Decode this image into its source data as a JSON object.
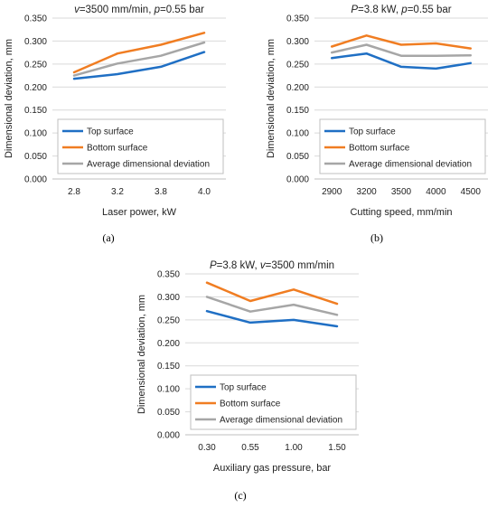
{
  "chart_data": [
    {
      "type": "line",
      "panel_label": "(a)",
      "title_parts": [
        {
          "t": "v",
          "italic": true
        },
        {
          "t": "=3500 mm/min, ",
          "italic": false
        },
        {
          "t": "p",
          "italic": true
        },
        {
          "t": "=0.55 bar",
          "italic": false
        }
      ],
      "xlabel": "Laser power, kW",
      "ylabel": "Dimensional deviation, mm",
      "categories": [
        "2.8",
        "3.2",
        "3.8",
        "4.0"
      ],
      "ylim": [
        0,
        0.35
      ],
      "yticks": [
        "0.000",
        "0.050",
        "0.100",
        "0.150",
        "0.200",
        "0.250",
        "0.300",
        "0.350"
      ],
      "grid": "horizontal",
      "legend_position": "bottom-right",
      "series": [
        {
          "name": "Top surface",
          "color": "#1f6fc4",
          "values": [
            0.218,
            0.228,
            0.244,
            0.276
          ]
        },
        {
          "name": "Bottom surface",
          "color": "#f07d22",
          "values": [
            0.232,
            0.273,
            0.292,
            0.318
          ]
        },
        {
          "name": "Average dimensional deviation",
          "color": "#a6a6a6",
          "values": [
            0.225,
            0.251,
            0.268,
            0.297
          ]
        }
      ]
    },
    {
      "type": "line",
      "panel_label": "(b)",
      "title_parts": [
        {
          "t": "P",
          "italic": true
        },
        {
          "t": "=3.8 kW, ",
          "italic": false
        },
        {
          "t": "p",
          "italic": true
        },
        {
          "t": "=0.55 bar",
          "italic": false
        }
      ],
      "xlabel": "Cutting speed, mm/min",
      "ylabel": "Dimensional deviation, mm",
      "categories": [
        "2900",
        "3200",
        "3500",
        "4000",
        "4500"
      ],
      "ylim": [
        0,
        0.35
      ],
      "yticks": [
        "0.000",
        "0.050",
        "0.100",
        "0.150",
        "0.200",
        "0.250",
        "0.300",
        "0.350"
      ],
      "grid": "horizontal",
      "legend_position": "bottom-right",
      "series": [
        {
          "name": "Top surface",
          "color": "#1f6fc4",
          "values": [
            0.263,
            0.273,
            0.244,
            0.24,
            0.252
          ]
        },
        {
          "name": "Bottom surface",
          "color": "#f07d22",
          "values": [
            0.288,
            0.312,
            0.292,
            0.295,
            0.284
          ]
        },
        {
          "name": "Average dimensional deviation",
          "color": "#a6a6a6",
          "values": [
            0.275,
            0.292,
            0.268,
            0.268,
            0.269
          ]
        }
      ]
    },
    {
      "type": "line",
      "panel_label": "(c)",
      "title_parts": [
        {
          "t": "P",
          "italic": true
        },
        {
          "t": "=3.8 kW, ",
          "italic": false
        },
        {
          "t": "v",
          "italic": true
        },
        {
          "t": "=3500 mm/min",
          "italic": false
        }
      ],
      "xlabel": "Auxiliary gas pressure, bar",
      "ylabel": "Dimensional deviation, mm",
      "categories": [
        "0.30",
        "0.55",
        "1.00",
        "1.50"
      ],
      "ylim": [
        0,
        0.35
      ],
      "yticks": [
        "0.000",
        "0.050",
        "0.100",
        "0.150",
        "0.200",
        "0.250",
        "0.300",
        "0.350"
      ],
      "grid": "horizontal",
      "legend_position": "bottom-right",
      "series": [
        {
          "name": "Top surface",
          "color": "#1f6fc4",
          "values": [
            0.269,
            0.244,
            0.25,
            0.236
          ]
        },
        {
          "name": "Bottom surface",
          "color": "#f07d22",
          "values": [
            0.331,
            0.291,
            0.316,
            0.285
          ]
        },
        {
          "name": "Average dimensional deviation",
          "color": "#a6a6a6",
          "values": [
            0.3,
            0.268,
            0.283,
            0.261
          ]
        }
      ]
    }
  ]
}
